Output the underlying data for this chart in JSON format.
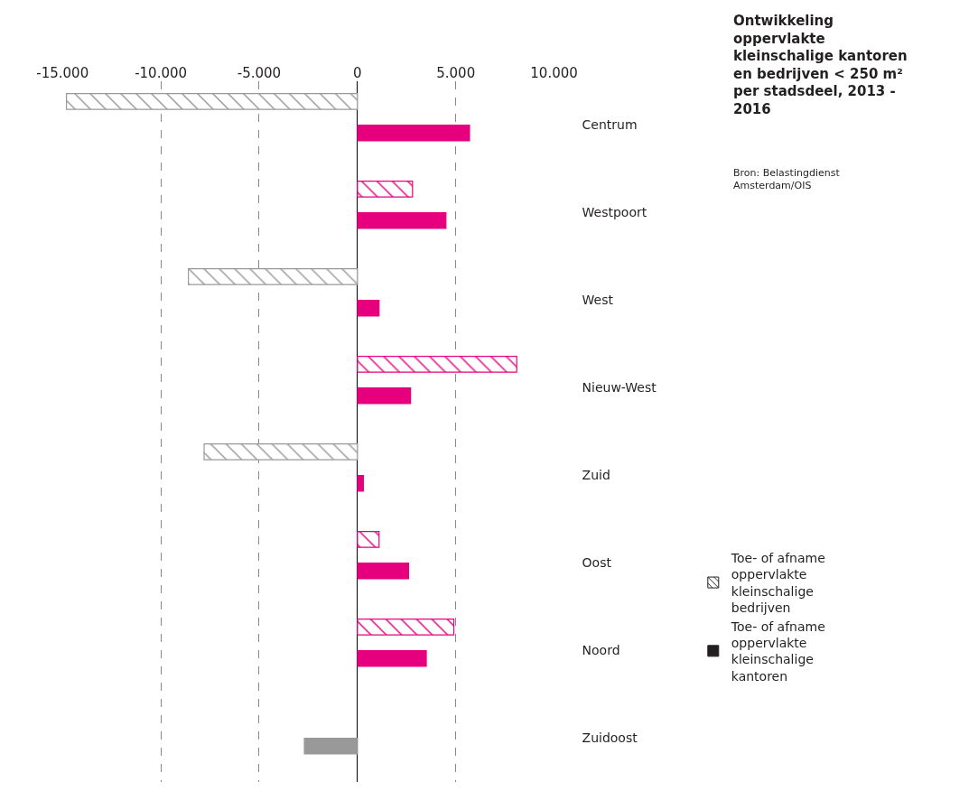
{
  "chart_data": {
    "type": "bar",
    "orientation": "horizontal",
    "title": "Ontwikkeling oppervlakte kleinschalige kantoren en bedrijven < 250 m² per stadsdeel, 2013 - 2016",
    "annotations": [
      "Bron: Belastingdienst Amsterdam/OIS"
    ],
    "categories": [
      "Centrum",
      "Westpoort",
      "West",
      "Nieuw-West",
      "Zuid",
      "Oost",
      "Noord",
      "Zuidoost"
    ],
    "series": [
      {
        "name": "Toe- of afname oppervlakte kleinschalige bedrijven",
        "color": "#231f20",
        "values": [
          -14800,
          2800,
          -8600,
          8100,
          -7800,
          1100,
          4900,
          null
        ],
        "colors": [
          "#999999",
          "#e6007e",
          "#999999",
          "#e6007e",
          "#999999",
          "#e6007e",
          "#e6007e",
          "#999999"
        ]
      },
      {
        "name": "Toe- of afname oppervlakte kleinschalige kantoren",
        "color": "#231f20",
        "values": [
          5700,
          4500,
          1100,
          2700,
          300,
          2600,
          3500,
          -2700
        ],
        "colors": [
          "#e6007e",
          "#e6007e",
          "#e6007e",
          "#e6007e",
          "#e6007e",
          "#e6007e",
          "#e6007e",
          "#999999"
        ]
      }
    ],
    "xlim": [
      -15000,
      10000
    ],
    "xticks": [
      {
        "value": -15000,
        "label": "-15.000"
      },
      {
        "value": -10000,
        "label": "-10.000"
      },
      {
        "value": -5000,
        "label": "-5.000"
      },
      0,
      {
        "value": 5000,
        "label": "5.000"
      },
      {
        "value": 10000,
        "label": "10.000"
      }
    ],
    "grid": "x",
    "legend": "bottom right"
  }
}
